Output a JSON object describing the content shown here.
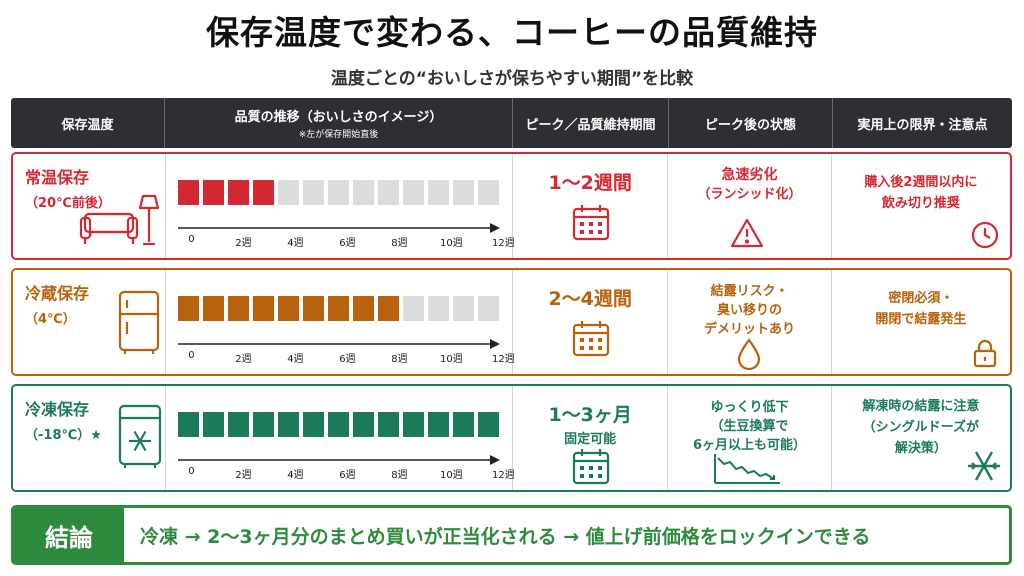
{
  "title": "保存温度で変わる、コーヒーの品質維持",
  "subtitle": "温度ごとの“おいしさが保ちやすい期間”を比較",
  "header": {
    "col1": "保存温度",
    "col2": "品質の推移（おいしさのイメージ）",
    "col2_note": "※左が保存開始直後",
    "col3": "ピーク／品質維持期間",
    "col4": "ピーク後の状態",
    "col5": "実用上の限界・注意点"
  },
  "ticks": [
    "0",
    "2週",
    "4週",
    "6週",
    "8週",
    "10週",
    "12週"
  ],
  "rows": [
    {
      "label": "常温保存",
      "temp": "（20℃前後）",
      "color": "#d42832",
      "filled": 4,
      "total": 13,
      "peak": "1～2週間",
      "peak_sub": "",
      "state": [
        "急速劣化",
        "（ランシッド化）"
      ],
      "limit": [
        "購入後2週間以内に",
        "飲み切り推奨"
      ],
      "icon_left": "sofa-lamp-icon",
      "icon_state": "warning-icon",
      "icon_limit": "clock-icon"
    },
    {
      "label": "冷蔵保存",
      "temp": "（4℃）",
      "color": "#b8620c",
      "filled": 9,
      "total": 13,
      "peak": "2～4週間",
      "peak_sub": "",
      "state": [
        "結露リスク・",
        "臭い移りの",
        "デメリットあり"
      ],
      "limit": [
        "密閉必須・",
        "開閉で結露発生"
      ],
      "icon_left": "refrigerator-icon",
      "icon_state": "water-drop-icon",
      "icon_limit": "lock-icon"
    },
    {
      "label": "冷凍保存",
      "temp": "（-18℃）★",
      "color": "#1c7a5c",
      "filled": 13,
      "total": 13,
      "peak": "1～3ヶ月",
      "peak_sub": "固定可能",
      "state": [
        "ゆっくり低下",
        "（生豆換算で",
        "6ヶ月以上も可能）"
      ],
      "limit": [
        "解凍時の結露に注意",
        "（シングルドーズが",
        "解決策）"
      ],
      "icon_left": "freezer-icon",
      "icon_state": "declining-chart-icon",
      "icon_limit": "snowflake-icon"
    }
  ],
  "conclusion": {
    "label": "結論",
    "text": "冷凍 → 2～3ヶ月分のまとめ買いが正当化される → 値上げ前価格をロックインできる"
  }
}
